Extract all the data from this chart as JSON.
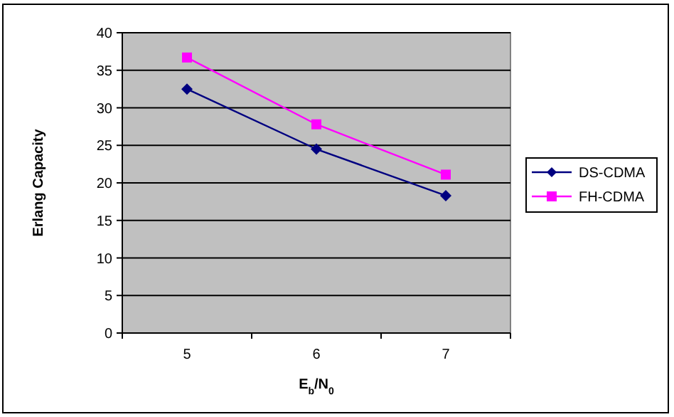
{
  "chart_data": {
    "type": "line",
    "xlabel": "E$_{b}$/N$_{0}$",
    "ylabel": "Erlang Capacity",
    "categories": [
      "5",
      "6",
      "7"
    ],
    "series": [
      {
        "name": "DS-CDMA",
        "color": "#000080",
        "marker": "diamond",
        "values": [
          32.5,
          24.5,
          18.3
        ]
      },
      {
        "name": "FH-CDMA",
        "color": "#ff00ff",
        "marker": "square",
        "values": [
          36.7,
          27.8,
          21.1
        ]
      }
    ],
    "ylim": [
      0,
      40
    ],
    "yticks": [
      0,
      5,
      10,
      15,
      20,
      25,
      30,
      35,
      40
    ],
    "grid": "y",
    "legend": "right"
  }
}
